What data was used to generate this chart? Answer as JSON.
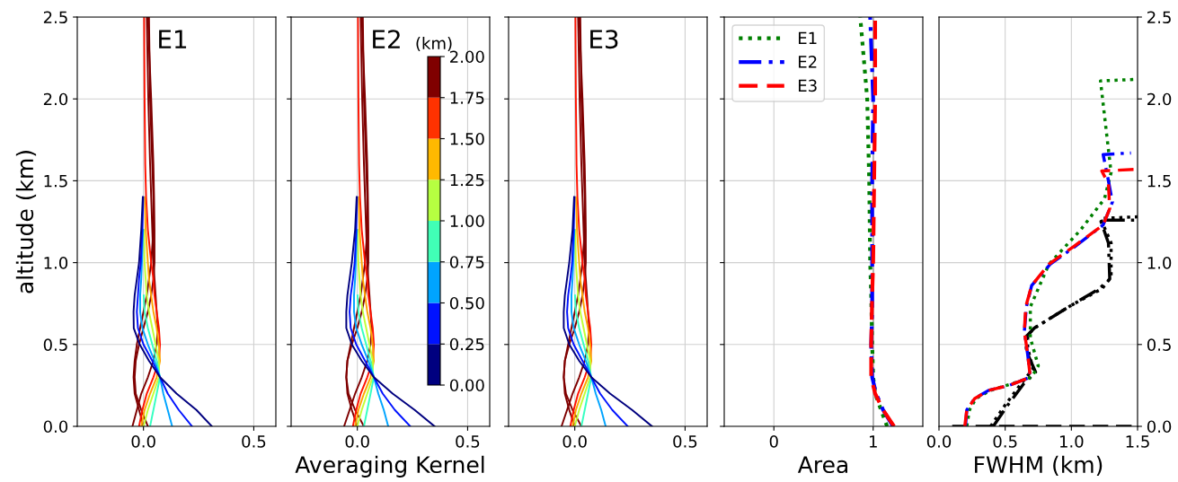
{
  "chart_data": [
    {
      "type": "line",
      "annotations": [
        "E1"
      ],
      "ylabel": "altitude (km)",
      "xlim": [
        -0.3,
        0.6
      ],
      "xticks": [
        {
          "value": 0,
          "label": "0.0"
        },
        {
          "value": 0.5,
          "label": "0.5"
        }
      ],
      "ylim": [
        0,
        2.5
      ],
      "yticks": [
        {
          "value": 0,
          "label": "0.0"
        },
        {
          "value": 0.5,
          "label": "0.5"
        },
        {
          "value": 1,
          "label": "1.0"
        },
        {
          "value": 1.5,
          "label": "1.5"
        },
        {
          "value": 2,
          "label": "2.0"
        },
        {
          "value": 2.5,
          "label": "2.5"
        }
      ],
      "grid": true,
      "series": [
        {
          "color": "#7f0000",
          "x": [
            0.02,
            -0.01,
            -0.035,
            -0.04,
            -0.035,
            -0.02,
            0.0,
            0.02,
            0.035,
            0.045,
            0.05,
            0.05,
            0.048,
            0.045,
            0.035,
            0.02
          ],
          "values": [
            0,
            0.1,
            0.2,
            0.3,
            0.4,
            0.5,
            0.6,
            0.7,
            0.8,
            0.9,
            1.0,
            1.2,
            1.4,
            1.6,
            2.0,
            2.5
          ]
        },
        {
          "color": "#7f0000",
          "x": [
            0.0,
            -0.02,
            -0.04,
            -0.045,
            -0.04,
            -0.03,
            -0.015,
            0.0,
            0.015,
            0.025,
            0.035,
            0.045,
            0.045,
            0.04,
            0.03,
            0.025
          ],
          "values": [
            0,
            0.1,
            0.2,
            0.3,
            0.4,
            0.5,
            0.6,
            0.7,
            0.8,
            0.9,
            1.0,
            1.2,
            1.4,
            1.6,
            2.0,
            2.5
          ]
        },
        {
          "color": "#7f0000",
          "x": [
            -0.05,
            -0.03,
            -0.01,
            0.02,
            0.045,
            0.06,
            0.065,
            0.06,
            0.055,
            0.05,
            0.045,
            0.04,
            0.035,
            0.03,
            0.022,
            0.015
          ],
          "values": [
            0,
            0.1,
            0.2,
            0.3,
            0.4,
            0.5,
            0.6,
            0.7,
            0.8,
            0.9,
            1.0,
            1.2,
            1.4,
            1.6,
            2.0,
            2.5
          ]
        },
        {
          "color": "#ff1200",
          "x": [
            -0.02,
            -0.005,
            0.015,
            0.045,
            0.07,
            0.075,
            0.07,
            0.06,
            0.05,
            0.045,
            0.035,
            0.02,
            0.012,
            0.008,
            0.005,
            0.003
          ],
          "values": [
            0,
            0.1,
            0.2,
            0.3,
            0.4,
            0.5,
            0.6,
            0.7,
            0.8,
            0.9,
            1.0,
            1.2,
            1.4,
            1.6,
            2.0,
            2.5
          ]
        },
        {
          "color": "#ffa400",
          "x": [
            -0.01,
            0.005,
            0.03,
            0.06,
            0.075,
            0.07,
            0.06,
            0.045,
            0.035,
            0.025,
            0.02,
            0.01,
            0.006
          ],
          "values": [
            0,
            0.1,
            0.2,
            0.3,
            0.4,
            0.5,
            0.6,
            0.7,
            0.8,
            0.9,
            1.0,
            1.2,
            1.4
          ]
        },
        {
          "color": "#c1ff36",
          "x": [
            0.0,
            0.02,
            0.045,
            0.07,
            0.07,
            0.055,
            0.04,
            0.025,
            0.015,
            0.01,
            0.005,
            0.002
          ],
          "values": [
            0,
            0.1,
            0.2,
            0.3,
            0.4,
            0.5,
            0.6,
            0.7,
            0.8,
            0.9,
            1.0,
            1.2
          ]
        },
        {
          "color": "#36ffc1",
          "x": [
            0.03,
            0.045,
            0.06,
            0.075,
            0.06,
            0.04,
            0.02,
            0.005,
            0.001
          ],
          "values": [
            0,
            0.1,
            0.2,
            0.3,
            0.4,
            0.5,
            0.6,
            0.7,
            0.8
          ]
        },
        {
          "color": "#00a4ff",
          "x": [
            0.13,
            0.11,
            0.09,
            0.075,
            0.05,
            0.02,
            -0.005,
            -0.015,
            -0.015,
            -0.01,
            -0.007,
            -0.002
          ],
          "values": [
            0,
            0.1,
            0.2,
            0.3,
            0.4,
            0.5,
            0.6,
            0.7,
            0.8,
            0.9,
            1.0,
            1.2
          ]
        },
        {
          "color": "#0012ff",
          "x": [
            0.22,
            0.16,
            0.11,
            0.075,
            0.04,
            0.0,
            -0.025,
            -0.03,
            -0.025,
            -0.02,
            -0.012,
            -0.005,
            -0.001
          ],
          "values": [
            0,
            0.1,
            0.2,
            0.3,
            0.4,
            0.5,
            0.6,
            0.7,
            0.8,
            0.9,
            1.0,
            1.2,
            1.4
          ]
        },
        {
          "color": "#00007f",
          "x": [
            0.31,
            0.24,
            0.15,
            0.075,
            0.025,
            -0.017,
            -0.044,
            -0.045,
            -0.04,
            -0.03,
            -0.02,
            -0.01,
            -0.003
          ],
          "values": [
            0,
            0.1,
            0.2,
            0.3,
            0.4,
            0.5,
            0.6,
            0.7,
            0.8,
            0.9,
            1.0,
            1.2,
            1.4
          ]
        }
      ]
    },
    {
      "type": "line",
      "annotations": [
        "E2"
      ],
      "xlabel": "Averaging Kernel",
      "clabel": "(km)",
      "clim": [
        0,
        2
      ],
      "cticks": [
        {
          "value": 0,
          "label": "0.00"
        },
        {
          "value": 0.25,
          "label": "0.25"
        },
        {
          "value": 0.5,
          "label": "0.50"
        },
        {
          "value": 0.75,
          "label": "0.75"
        },
        {
          "value": 1,
          "label": "1.00"
        },
        {
          "value": 1.25,
          "label": "1.25"
        },
        {
          "value": 1.5,
          "label": "1.50"
        },
        {
          "value": 1.75,
          "label": "1.75"
        },
        {
          "value": 2,
          "label": "2.00"
        }
      ],
      "xlim": [
        -0.3,
        0.6
      ],
      "xticks": [
        {
          "value": 0,
          "label": "0.0"
        },
        {
          "value": 0.5,
          "label": "0.5"
        }
      ],
      "ylim": [
        0,
        2.5
      ],
      "yticks": [
        0,
        0.5,
        1,
        1.5,
        2,
        2.5
      ],
      "tick_labels": "x",
      "grid": true,
      "series": [
        {
          "color": "#7f0000",
          "x": [
            0.03,
            -0.01,
            -0.04,
            -0.05,
            -0.045,
            -0.025,
            0.0,
            0.02,
            0.035,
            0.045,
            0.05,
            0.05,
            0.048,
            0.045,
            0.035,
            0.02
          ],
          "values": [
            0,
            0.1,
            0.2,
            0.3,
            0.4,
            0.5,
            0.6,
            0.7,
            0.8,
            0.9,
            1.0,
            1.2,
            1.4,
            1.6,
            2.0,
            2.5
          ]
        },
        {
          "color": "#7f0000",
          "x": [
            0.0,
            -0.025,
            -0.045,
            -0.05,
            -0.045,
            -0.03,
            -0.015,
            0.0,
            0.015,
            0.025,
            0.035,
            0.045,
            0.045,
            0.04,
            0.03,
            0.025
          ],
          "values": [
            0,
            0.1,
            0.2,
            0.3,
            0.4,
            0.5,
            0.6,
            0.7,
            0.8,
            0.9,
            1.0,
            1.2,
            1.4,
            1.6,
            2.0,
            2.5
          ]
        },
        {
          "color": "#7f0000",
          "x": [
            -0.06,
            -0.035,
            -0.01,
            0.02,
            0.045,
            0.06,
            0.065,
            0.06,
            0.055,
            0.05,
            0.045,
            0.04,
            0.035,
            0.03,
            0.022,
            0.015
          ],
          "values": [
            0,
            0.1,
            0.2,
            0.3,
            0.4,
            0.5,
            0.6,
            0.7,
            0.8,
            0.9,
            1.0,
            1.2,
            1.4,
            1.6,
            2.0,
            2.5
          ]
        },
        {
          "color": "#ff1200",
          "x": [
            -0.02,
            -0.005,
            0.015,
            0.045,
            0.07,
            0.075,
            0.07,
            0.06,
            0.05,
            0.045,
            0.035,
            0.02,
            0.012,
            0.008,
            0.005,
            0.003
          ],
          "values": [
            0,
            0.1,
            0.2,
            0.3,
            0.4,
            0.5,
            0.6,
            0.7,
            0.8,
            0.9,
            1.0,
            1.2,
            1.4,
            1.6,
            2.0,
            2.5
          ]
        },
        {
          "color": "#ffa400",
          "x": [
            -0.01,
            0.005,
            0.03,
            0.06,
            0.075,
            0.07,
            0.06,
            0.045,
            0.035,
            0.025,
            0.02,
            0.01,
            0.006
          ],
          "values": [
            0,
            0.1,
            0.2,
            0.3,
            0.4,
            0.5,
            0.6,
            0.7,
            0.8,
            0.9,
            1.0,
            1.2,
            1.4
          ]
        },
        {
          "color": "#c1ff36",
          "x": [
            0.0,
            0.02,
            0.045,
            0.07,
            0.07,
            0.055,
            0.04,
            0.025,
            0.015,
            0.01,
            0.005,
            0.002
          ],
          "values": [
            0,
            0.1,
            0.2,
            0.3,
            0.4,
            0.5,
            0.6,
            0.7,
            0.8,
            0.9,
            1.0,
            1.2
          ]
        },
        {
          "color": "#36ffc1",
          "x": [
            0.03,
            0.045,
            0.06,
            0.075,
            0.06,
            0.04,
            0.02,
            0.005,
            0.001
          ],
          "values": [
            0,
            0.1,
            0.2,
            0.3,
            0.4,
            0.5,
            0.6,
            0.7,
            0.8
          ]
        },
        {
          "color": "#00a4ff",
          "x": [
            0.14,
            0.12,
            0.095,
            0.075,
            0.05,
            0.02,
            -0.005,
            -0.015,
            -0.015,
            -0.01,
            -0.007,
            -0.002
          ],
          "values": [
            0,
            0.1,
            0.2,
            0.3,
            0.4,
            0.5,
            0.6,
            0.7,
            0.8,
            0.9,
            1.0,
            1.2
          ]
        },
        {
          "color": "#0012ff",
          "x": [
            0.24,
            0.17,
            0.115,
            0.075,
            0.035,
            -0.005,
            -0.03,
            -0.035,
            -0.03,
            -0.02,
            -0.012,
            -0.005,
            -0.001
          ],
          "values": [
            0,
            0.1,
            0.2,
            0.3,
            0.4,
            0.5,
            0.6,
            0.7,
            0.8,
            0.9,
            1.0,
            1.2,
            1.4
          ]
        },
        {
          "color": "#00007f",
          "x": [
            0.35,
            0.26,
            0.16,
            0.075,
            0.02,
            -0.025,
            -0.05,
            -0.05,
            -0.045,
            -0.035,
            -0.025,
            -0.01,
            -0.003
          ],
          "values": [
            0,
            0.1,
            0.2,
            0.3,
            0.4,
            0.5,
            0.6,
            0.7,
            0.8,
            0.9,
            1.0,
            1.2,
            1.4
          ]
        }
      ]
    },
    {
      "type": "line",
      "annotations": [
        "E3"
      ],
      "xlim": [
        -0.3,
        0.6
      ],
      "xticks": [
        {
          "value": 0,
          "label": "0.0"
        },
        {
          "value": 0.5,
          "label": "0.5"
        }
      ],
      "ylim": [
        0,
        2.5
      ],
      "yticks": [
        0,
        0.5,
        1,
        1.5,
        2,
        2.5
      ],
      "tick_labels": "x",
      "grid": true,
      "series": [
        {
          "color": "#7f0000",
          "x": [
            0.03,
            -0.01,
            -0.04,
            -0.05,
            -0.045,
            -0.025,
            0.0,
            0.02,
            0.035,
            0.045,
            0.05,
            0.05,
            0.048,
            0.045,
            0.035,
            0.02
          ],
          "values": [
            0,
            0.1,
            0.2,
            0.3,
            0.4,
            0.5,
            0.6,
            0.7,
            0.8,
            0.9,
            1.0,
            1.2,
            1.4,
            1.6,
            2.0,
            2.5
          ]
        },
        {
          "color": "#7f0000",
          "x": [
            0.0,
            -0.025,
            -0.045,
            -0.05,
            -0.045,
            -0.03,
            -0.015,
            0.0,
            0.015,
            0.025,
            0.035,
            0.045,
            0.045,
            0.04,
            0.03,
            0.025
          ],
          "values": [
            0,
            0.1,
            0.2,
            0.3,
            0.4,
            0.5,
            0.6,
            0.7,
            0.8,
            0.9,
            1.0,
            1.2,
            1.4,
            1.6,
            2.0,
            2.5
          ]
        },
        {
          "color": "#7f0000",
          "x": [
            -0.06,
            -0.035,
            -0.01,
            0.02,
            0.045,
            0.06,
            0.065,
            0.06,
            0.055,
            0.05,
            0.045,
            0.04,
            0.035,
            0.03,
            0.022,
            0.015
          ],
          "values": [
            0,
            0.1,
            0.2,
            0.3,
            0.4,
            0.5,
            0.6,
            0.7,
            0.8,
            0.9,
            1.0,
            1.2,
            1.4,
            1.6,
            2.0,
            2.5
          ]
        },
        {
          "color": "#ff1200",
          "x": [
            -0.02,
            -0.005,
            0.015,
            0.045,
            0.07,
            0.075,
            0.07,
            0.06,
            0.05,
            0.045,
            0.035,
            0.02,
            0.012,
            0.008,
            0.005,
            0.003
          ],
          "values": [
            0,
            0.1,
            0.2,
            0.3,
            0.4,
            0.5,
            0.6,
            0.7,
            0.8,
            0.9,
            1.0,
            1.2,
            1.4,
            1.6,
            2.0,
            2.5
          ]
        },
        {
          "color": "#ffa400",
          "x": [
            -0.01,
            0.005,
            0.03,
            0.06,
            0.075,
            0.07,
            0.06,
            0.045,
            0.035,
            0.025,
            0.02,
            0.01,
            0.006
          ],
          "values": [
            0,
            0.1,
            0.2,
            0.3,
            0.4,
            0.5,
            0.6,
            0.7,
            0.8,
            0.9,
            1.0,
            1.2,
            1.4
          ]
        },
        {
          "color": "#c1ff36",
          "x": [
            0.0,
            0.02,
            0.045,
            0.07,
            0.07,
            0.055,
            0.04,
            0.025,
            0.015,
            0.01,
            0.005,
            0.002
          ],
          "values": [
            0,
            0.1,
            0.2,
            0.3,
            0.4,
            0.5,
            0.6,
            0.7,
            0.8,
            0.9,
            1.0,
            1.2
          ]
        },
        {
          "color": "#36ffc1",
          "x": [
            0.03,
            0.045,
            0.06,
            0.075,
            0.06,
            0.04,
            0.02,
            0.005,
            0.001
          ],
          "values": [
            0,
            0.1,
            0.2,
            0.3,
            0.4,
            0.5,
            0.6,
            0.7,
            0.8
          ]
        },
        {
          "color": "#00a4ff",
          "x": [
            0.14,
            0.12,
            0.095,
            0.075,
            0.05,
            0.02,
            -0.005,
            -0.015,
            -0.015,
            -0.01,
            -0.007,
            -0.002
          ],
          "values": [
            0,
            0.1,
            0.2,
            0.3,
            0.4,
            0.5,
            0.6,
            0.7,
            0.8,
            0.9,
            1.0,
            1.2
          ]
        },
        {
          "color": "#0012ff",
          "x": [
            0.24,
            0.17,
            0.115,
            0.075,
            0.035,
            -0.005,
            -0.03,
            -0.035,
            -0.03,
            -0.02,
            -0.012,
            -0.005,
            -0.001
          ],
          "values": [
            0,
            0.1,
            0.2,
            0.3,
            0.4,
            0.5,
            0.6,
            0.7,
            0.8,
            0.9,
            1.0,
            1.2,
            1.4
          ]
        },
        {
          "color": "#00007f",
          "x": [
            0.35,
            0.26,
            0.16,
            0.075,
            0.02,
            -0.025,
            -0.05,
            -0.05,
            -0.045,
            -0.035,
            -0.025,
            -0.01,
            -0.003
          ],
          "values": [
            0,
            0.1,
            0.2,
            0.3,
            0.4,
            0.5,
            0.6,
            0.7,
            0.8,
            0.9,
            1.0,
            1.2,
            1.4
          ]
        }
      ]
    },
    {
      "type": "line",
      "xlabel": "Area",
      "xlim": [
        -0.5,
        1.5
      ],
      "xticks": [
        0,
        1
      ],
      "ylim": [
        0,
        2.5
      ],
      "yticks": [
        0,
        0.5,
        1,
        1.5,
        2,
        2.5
      ],
      "tick_labels": "x",
      "grid": true,
      "legend": "top left",
      "ref_lines": [
        {
          "axis": "x",
          "value": 1,
          "color": "#000000"
        }
      ],
      "series": [
        {
          "name": "E1",
          "color": "#008000",
          "line_style": "dotted",
          "x": [
            1.14,
            1.08,
            1.02,
            1.0,
            0.99,
            0.98,
            0.97,
            0.96,
            0.94,
            0.87
          ],
          "values": [
            0,
            0.1,
            0.2,
            0.3,
            0.5,
            0.8,
            1.0,
            1.5,
            2.0,
            2.5
          ]
        },
        {
          "name": "E2",
          "color": "#0000ff",
          "line_style": "dashdot",
          "x": [
            1.2,
            1.1,
            1.03,
            0.99,
            0.98,
            0.99,
            0.99,
            0.99,
            1.0,
            0.97
          ],
          "values": [
            0,
            0.1,
            0.2,
            0.3,
            0.5,
            0.7,
            1.0,
            1.5,
            2.0,
            2.5
          ]
        },
        {
          "name": "E3",
          "color": "#ff0000",
          "line_style": "dashed",
          "x": [
            1.21,
            1.1,
            1.02,
            0.98,
            0.98,
            0.99,
            1.0,
            1.01,
            1.02,
            1.02
          ],
          "values": [
            0,
            0.1,
            0.2,
            0.3,
            0.5,
            0.8,
            1.0,
            1.5,
            2.0,
            2.5
          ]
        }
      ]
    },
    {
      "type": "line",
      "xlabel": "FWHM (km)",
      "xlim": [
        0,
        1.5
      ],
      "xticks": [
        {
          "value": 0,
          "label": "0.0"
        },
        {
          "value": 0.5,
          "label": "0.5"
        },
        {
          "value": 1,
          "label": "1.0"
        },
        {
          "value": 1.5,
          "label": "1.5"
        }
      ],
      "ylim": [
        0,
        2.5
      ],
      "yticks": [
        {
          "value": 0,
          "label": "0.0"
        },
        {
          "value": 0.5,
          "label": "0.5"
        },
        {
          "value": 1,
          "label": "1.0"
        },
        {
          "value": 1.5,
          "label": "1.5"
        },
        {
          "value": 2,
          "label": "2.0"
        },
        {
          "value": 2.5,
          "label": "2.5"
        }
      ],
      "grid": true,
      "series": [
        {
          "color": "#000000",
          "line_style": "dashed",
          "x": [
            0.1,
            1.5
          ],
          "values": [
            0,
            0
          ]
        },
        {
          "color": "#000000",
          "line_style": "dotted",
          "x": [
            0.39,
            0.5,
            0.62,
            0.71,
            0.67,
            0.67,
            0.74,
            1.0,
            1.23,
            1.3,
            1.3,
            1.22,
            1.5
          ],
          "values": [
            0,
            0.13,
            0.26,
            0.35,
            0.48,
            0.56,
            0.61,
            0.74,
            0.84,
            0.91,
            1.12,
            1.27,
            1.28
          ]
        },
        {
          "color": "#000000",
          "line_style": "dashdot",
          "x": [
            0.41,
            0.52,
            0.64,
            0.73,
            0.66,
            0.66,
            0.72,
            0.98,
            1.21,
            1.29,
            1.28,
            1.22,
            1.5
          ],
          "values": [
            0,
            0.13,
            0.26,
            0.33,
            0.46,
            0.55,
            0.6,
            0.73,
            0.84,
            0.9,
            1.12,
            1.26,
            1.26
          ]
        },
        {
          "color": "#008000",
          "line_style": "dotted",
          "x": [
            0.21,
            0.23,
            0.28,
            0.39,
            0.55,
            0.7,
            0.75,
            0.69,
            0.69,
            0.83,
            1.07,
            1.25,
            1.3,
            1.22,
            1.5
          ],
          "values": [
            0,
            0.1,
            0.17,
            0.22,
            0.26,
            0.3,
            0.37,
            0.54,
            0.73,
            0.99,
            1.2,
            1.39,
            1.55,
            2.11,
            2.12
          ]
        },
        {
          "color": "#0000ff",
          "line_style": "dashdot",
          "x": [
            0.2,
            0.21,
            0.27,
            0.375,
            0.53,
            0.69,
            0.67,
            0.645,
            0.66,
            0.7,
            0.84,
            1.03,
            1.24,
            1.31,
            1.28,
            1.24,
            1.45
          ],
          "values": [
            0,
            0.1,
            0.17,
            0.22,
            0.25,
            0.3,
            0.44,
            0.58,
            0.73,
            0.86,
            0.99,
            1.1,
            1.23,
            1.37,
            1.5,
            1.66,
            1.67
          ]
        },
        {
          "color": "#ff0000",
          "line_style": "dashed",
          "x": [
            0.195,
            0.21,
            0.27,
            0.375,
            0.53,
            0.69,
            0.67,
            0.645,
            0.655,
            0.7,
            0.83,
            1.02,
            1.24,
            1.29,
            1.28,
            1.23,
            1.5
          ],
          "values": [
            0,
            0.1,
            0.17,
            0.22,
            0.25,
            0.3,
            0.44,
            0.58,
            0.73,
            0.86,
            0.99,
            1.1,
            1.23,
            1.33,
            1.48,
            1.56,
            1.57
          ]
        }
      ]
    }
  ]
}
